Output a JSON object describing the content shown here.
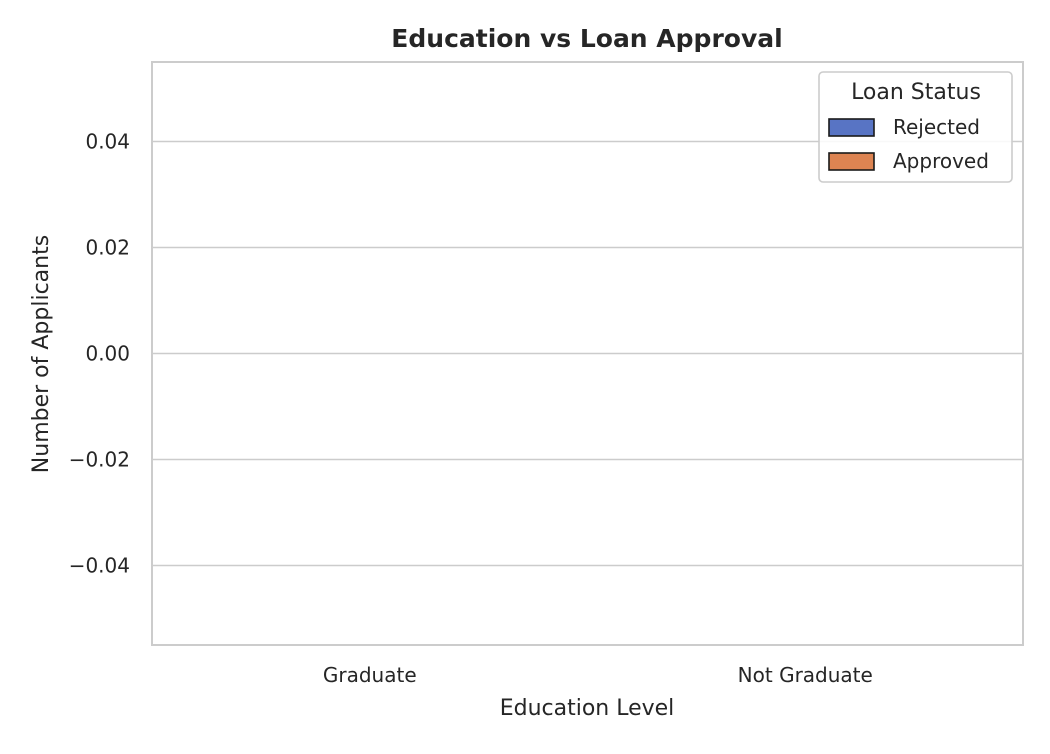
{
  "chart_data": {
    "type": "bar",
    "title": "Education vs Loan Approval",
    "xlabel": "Education Level",
    "ylabel": "Number of Applicants",
    "categories": [
      "Graduate",
      "Not Graduate"
    ],
    "series": [
      {
        "name": "Rejected",
        "values": [
          0,
          0
        ],
        "color": "#5874c4"
      },
      {
        "name": "Approved",
        "values": [
          0,
          0
        ],
        "color": "#dd8452"
      }
    ],
    "ylim": [
      -0.055,
      0.055
    ],
    "yticks": [
      -0.04,
      -0.02,
      0.0,
      0.02,
      0.04
    ],
    "ytick_labels": [
      "−0.04",
      "−0.02",
      "0.00",
      "0.02",
      "0.04"
    ],
    "grid": "horizontal",
    "legend": {
      "title": "Loan Status",
      "placement": "top-right"
    }
  },
  "colors": {
    "background": "#ffffff",
    "grid": "#cccccc",
    "frame": "#cccccc",
    "text": "#262626",
    "legend_swatch_border": "#1a1a1a"
  }
}
